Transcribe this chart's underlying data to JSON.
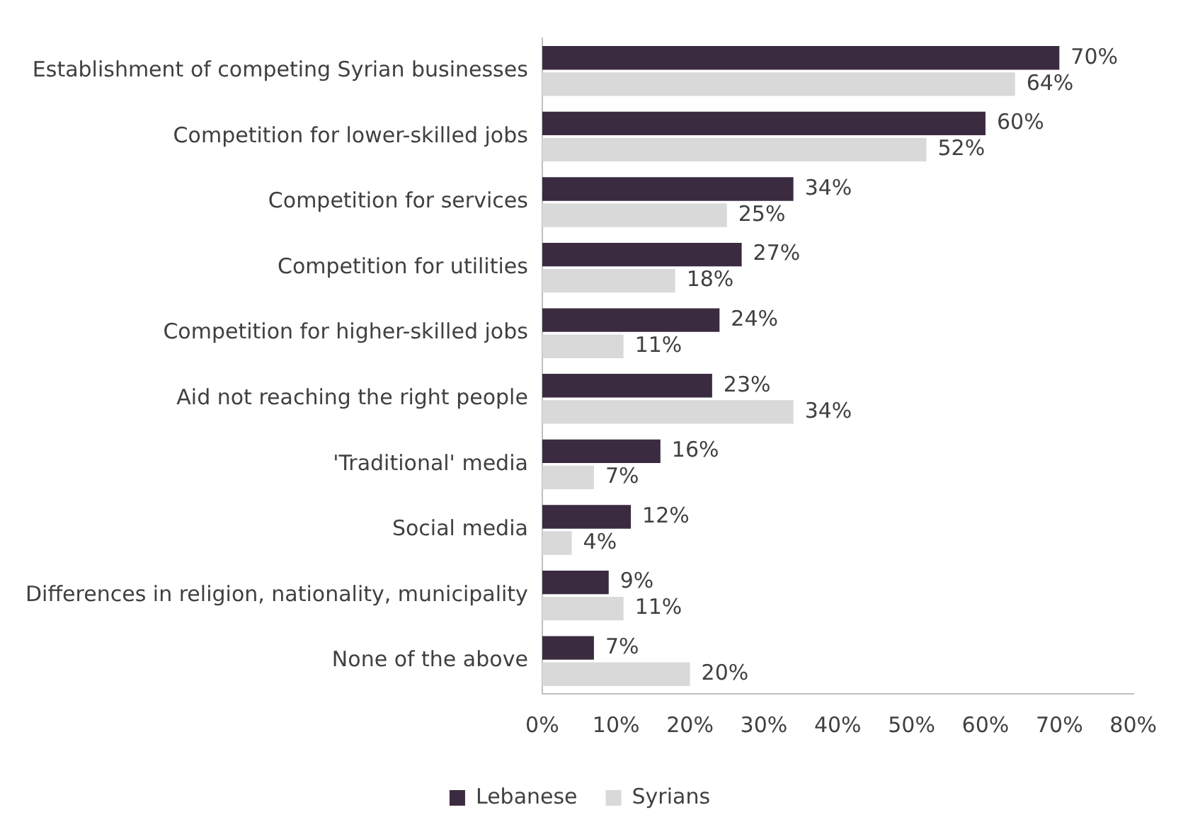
{
  "chart_data": {
    "type": "bar",
    "orientation": "horizontal",
    "categories": [
      "Establishment of competing Syrian businesses",
      "Competition for lower-skilled jobs",
      "Competition for services",
      "Competition for utilities",
      "Competition for higher-skilled jobs",
      "Aid not reaching the right people",
      "'Traditional' media",
      "Social media",
      "Differences in religion, nationality, municipality",
      "None of the above"
    ],
    "series": [
      {
        "name": "Lebanese",
        "color": "#3b2b40",
        "values": [
          70,
          60,
          34,
          27,
          24,
          23,
          16,
          12,
          9,
          7
        ],
        "value_labels": [
          "70%",
          "60%",
          "34%",
          "27%",
          "24%",
          "23%",
          "16%",
          "12%",
          "9%",
          "7%"
        ]
      },
      {
        "name": "Syrians",
        "color": "#d9d9d9",
        "values": [
          64,
          52,
          25,
          18,
          11,
          34,
          7,
          4,
          11,
          20
        ],
        "value_labels": [
          "64%",
          "52%",
          "25%",
          "18%",
          "11%",
          "34%",
          "7%",
          "4%",
          "11%",
          "20%"
        ]
      }
    ],
    "xlim": [
      0,
      80
    ],
    "xticks": [
      {
        "value": 0,
        "label": "0%"
      },
      {
        "value": 10,
        "label": "10%"
      },
      {
        "value": 20,
        "label": "20%"
      },
      {
        "value": 30,
        "label": "30%"
      },
      {
        "value": 40,
        "label": "40%"
      },
      {
        "value": 50,
        "label": "50%"
      },
      {
        "value": 60,
        "label": "60%"
      },
      {
        "value": 70,
        "label": "70%"
      },
      {
        "value": 80,
        "label": "80%"
      }
    ],
    "grid": false,
    "legend": "bottom"
  }
}
